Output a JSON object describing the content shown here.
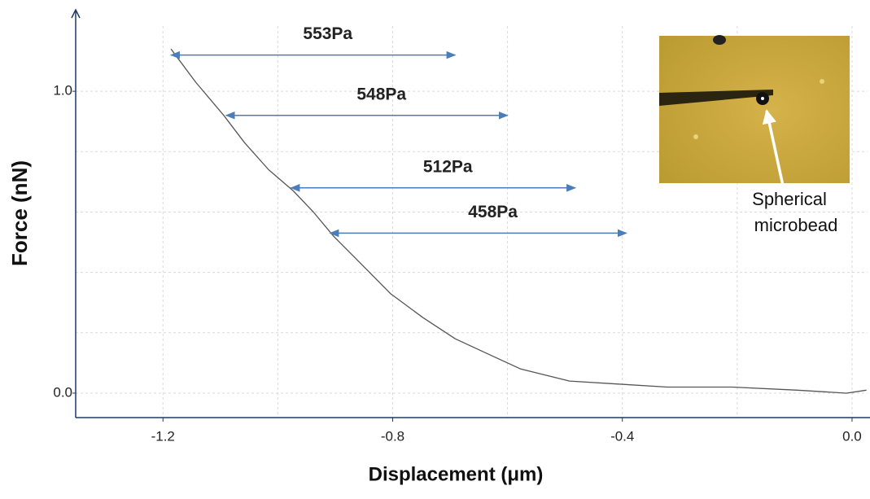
{
  "chart_data": {
    "type": "line",
    "x_label": "Displacement (μm)",
    "y_label": "Force (nN)",
    "x": [
      -1.186,
      -1.143,
      -1.094,
      -1.058,
      -1.016,
      -0.973,
      -0.938,
      -0.903,
      -0.861,
      -0.804,
      -0.747,
      -0.691,
      -0.634,
      -0.577,
      -0.492,
      -0.407,
      -0.322,
      -0.209,
      -0.095,
      -0.01,
      0.025
    ],
    "values": [
      1.14,
      1.03,
      0.92,
      0.83,
      0.74,
      0.67,
      0.6,
      0.52,
      0.44,
      0.33,
      0.25,
      0.18,
      0.13,
      0.08,
      0.04,
      0.03,
      0.02,
      0.02,
      0.01,
      0.0,
      0.01
    ],
    "color": "#555555",
    "xlim": [
      -1.352,
      0.027
    ],
    "ylim": [
      -0.081,
      1.27
    ],
    "xticks": [
      -1.2,
      -0.8,
      -0.4,
      {
        "value": 0,
        "label": "0.0"
      }
    ],
    "yticks": [
      {
        "value": 0,
        "label": "0.0"
      },
      {
        "value": 1,
        "label": "1.0"
      }
    ],
    "xgrid": [
      -1.2,
      -1.0,
      -0.8,
      -0.6,
      -0.4,
      -0.2,
      0
    ],
    "ygrid": [
      0,
      0.2,
      0.4,
      0.6,
      0.8,
      1.0
    ],
    "grid": true,
    "annotations": [
      {
        "text": "553Pa",
        "x": [
          -1.186,
          -0.691
        ],
        "y": 1.12
      },
      {
        "text": "548Pa",
        "x": [
          -1.09,
          -0.6
        ],
        "y": 0.92
      },
      {
        "text": "512Pa",
        "x": [
          -0.977,
          -0.482
        ],
        "y": 0.68
      },
      {
        "text": "458Pa",
        "x": [
          -0.909,
          -0.393
        ],
        "y": 0.53
      }
    ],
    "annotation_color": "#4a7ebb"
  },
  "inset": {
    "caption": [
      "Spherical",
      "microbead"
    ]
  }
}
